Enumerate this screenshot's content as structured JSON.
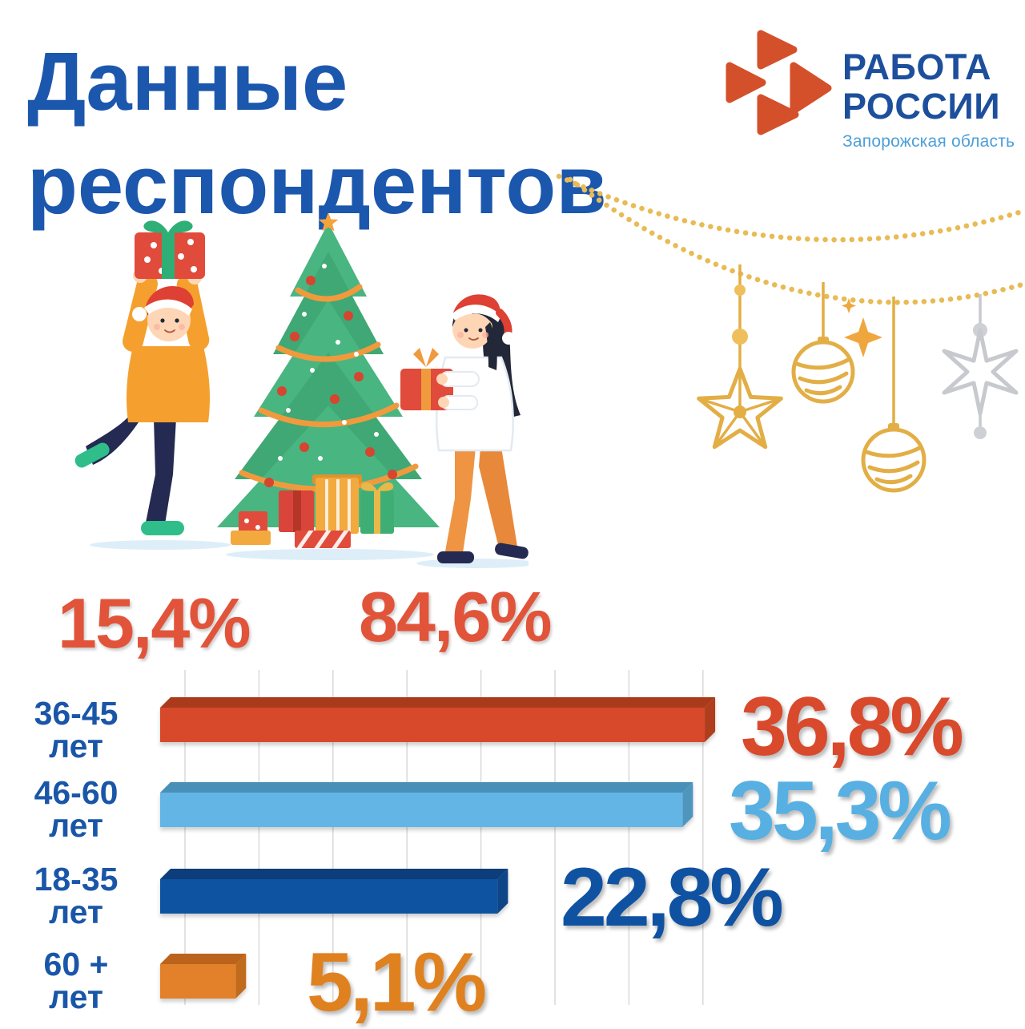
{
  "page": {
    "title_line1": "Данные",
    "title_line2": "респондентов",
    "title_color": "#1c57ae",
    "background": "#ffffff"
  },
  "logo": {
    "brand_line1": "РАБОТА",
    "brand_line2": "РОССИИ",
    "region": "Запорожская область",
    "brand_color": "#1d4f9c",
    "region_color": "#4d9fd8",
    "mark_color": "#d4502b"
  },
  "gender_stats": {
    "left": {
      "label": "15,4%",
      "color": "#e1543a"
    },
    "right": {
      "label": "84,6%",
      "color": "#e1543a"
    }
  },
  "chart_data": {
    "type": "bar",
    "orientation": "horizontal",
    "title": "",
    "xlabel": "",
    "ylabel": "",
    "grid": true,
    "gridline_step_percent": 5,
    "xlim": [
      0,
      40
    ],
    "categories": [
      "36-45 лет",
      "46-60 лет",
      "18-35 лет",
      "60 + лет"
    ],
    "values": [
      36.8,
      35.3,
      22.8,
      5.1
    ],
    "value_labels": [
      "36,8%",
      "35,3%",
      "22,8%",
      "5,1%"
    ],
    "category_color": "#1a56a8",
    "gridline_color": "#d9d9d9",
    "rows": [
      {
        "range": "36-45",
        "unit": "лет",
        "value": 36.8,
        "value_label": "36,8%",
        "bar_face": "#d7492b",
        "bar_top": "#a93a1e",
        "bar_side": "#b03c1f",
        "label_color": "#d9492c"
      },
      {
        "range": "46-60",
        "unit": "лет",
        "value": 35.3,
        "value_label": "35,3%",
        "bar_face": "#64b5e6",
        "bar_top": "#4a90b8",
        "bar_side": "#4f96be",
        "label_color": "#58b0e2"
      },
      {
        "range": "18-35",
        "unit": "лет",
        "value": 22.8,
        "value_label": "22,8%",
        "bar_face": "#1052a2",
        "bar_top": "#0b3c7a",
        "bar_side": "#0d4486",
        "label_color": "#1052a2"
      },
      {
        "range": "60 +",
        "unit": "лет",
        "value": 5.1,
        "value_label": "5,1%",
        "bar_face": "#e2812b",
        "bar_top": "#bb641c",
        "bar_side": "#c06a1e",
        "label_color": "#e0811f"
      }
    ]
  },
  "decor": {
    "garland_gold": "#e2ae45",
    "garland_silver": "#c7c9ce",
    "sparkle_orange": "#f0a63e"
  }
}
